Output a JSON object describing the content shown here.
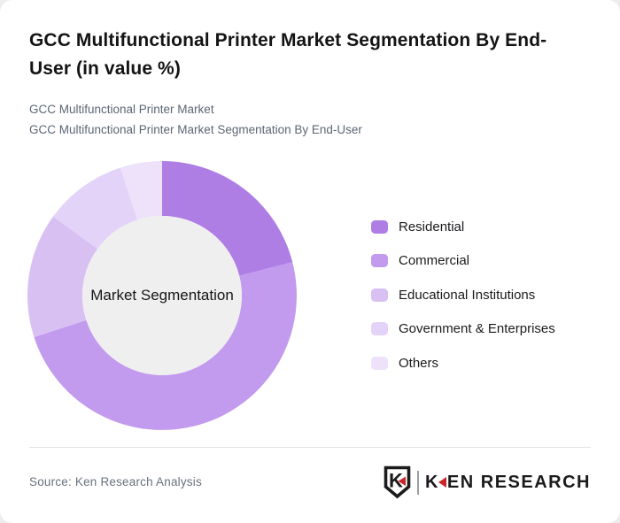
{
  "header": {
    "title": "GCC Multifunctional Printer Market Segmentation By End-User (in value %)",
    "subtitle_line1": "GCC Multifunctional Printer Market",
    "subtitle_line2": "GCC Multifunctional Printer Market Segmentation By End-User"
  },
  "chart_data": {
    "type": "pie",
    "variant": "donut",
    "title": "GCC Multifunctional Printer Market Segmentation By End-User (in value %)",
    "center_label": "Market Segmentation",
    "categories": [
      "Residential",
      "Commercial",
      "Educational Institutions",
      "Government & Enterprises",
      "Others"
    ],
    "values": [
      21,
      49,
      15,
      10,
      5
    ],
    "values_estimated_from_angles": true,
    "unit": "percent of value",
    "colors": [
      "#ae7ee5",
      "#c29aee",
      "#d9c0f3",
      "#e4d3f8",
      "#eee2fb"
    ],
    "start_angle_deg": 0,
    "direction": "clockwise",
    "legend_position": "right",
    "inner_hole_color": "#f0eff0"
  },
  "legend": {
    "items": [
      {
        "label": "Residential",
        "color": "#ae7ee5"
      },
      {
        "label": "Commercial",
        "color": "#c29aee"
      },
      {
        "label": "Educational Institutions",
        "color": "#d9c0f3"
      },
      {
        "label": "Government & Enterprises",
        "color": "#e4d3f8"
      },
      {
        "label": "Others",
        "color": "#eee2fb"
      }
    ]
  },
  "footer": {
    "source": "Source: Ken Research Analysis",
    "logo": {
      "badge_letter": "K",
      "wordmark_first_letter": "K",
      "wordmark_rest": "EN RESEARCH",
      "accent_color": "#c9252b",
      "text_color": "#1b1b1d"
    }
  }
}
